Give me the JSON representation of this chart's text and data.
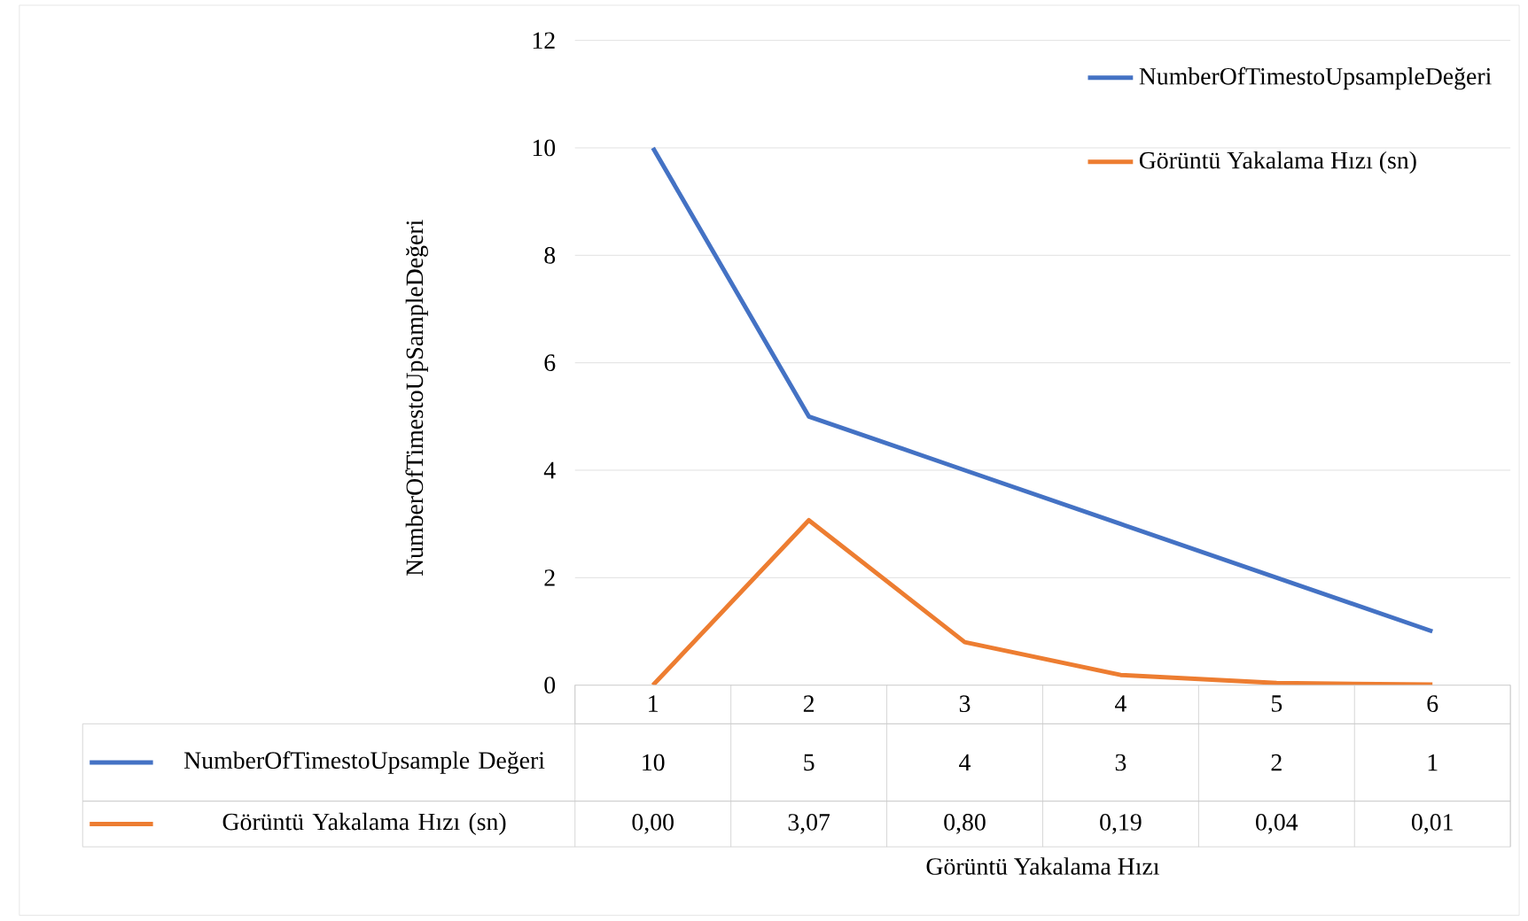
{
  "chart_data": {
    "type": "line",
    "categories": [
      "1",
      "2",
      "3",
      "4",
      "5",
      "6"
    ],
    "ylabel": "NumberOfTimestoUpSampleDeğeri",
    "ylim": [
      0,
      12
    ],
    "yticks": [
      0,
      2,
      4,
      6,
      8,
      10,
      12
    ],
    "grid": "y",
    "legend": "top right",
    "marker": "none",
    "series": [
      {
        "name": "NumberOfTimestoUpsampleDeğeri",
        "color": "#4472c4",
        "values": [
          10,
          5,
          4,
          3,
          2,
          1
        ],
        "value_labels": [
          "10",
          "5",
          "4",
          "3",
          "2",
          "1"
        ]
      },
      {
        "name": "Görüntü Yakalama  Hızı (sn)",
        "color": "#ed7d31",
        "values": [
          0,
          3.07,
          0.8,
          0.19,
          0.04,
          0.01
        ],
        "value_labels": [
          "0,00",
          "3,07",
          "0,80",
          "0,19",
          "0,04",
          "0,01"
        ]
      }
    ],
    "annotations": [
      "NumberOfTimestoUpsample Değeri",
      "Görüntü Yakalama  Hızı (sn)",
      "Görüntü Yakalama Hızı"
    ]
  }
}
